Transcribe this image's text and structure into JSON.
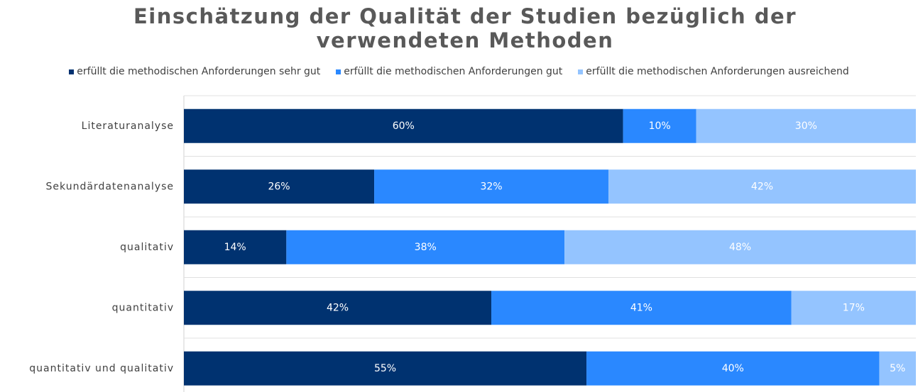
{
  "chart_data": {
    "type": "stacked-barh",
    "title": "Einschätzung der Qualität der Studien bezüglich der verwendeten Methoden",
    "categories": [
      "Literaturanalyse",
      "Sekundärdatenanalyse",
      "qualitativ",
      "quantitativ",
      "quantitativ und qualitativ"
    ],
    "series": [
      {
        "name": "erfüllt die methodischen Anforderungen sehr gut",
        "color": "#003270",
        "values": [
          60,
          26,
          14,
          42,
          55
        ],
        "value_labels": [
          "60%",
          "26%",
          "14%",
          "42%",
          "55%"
        ]
      },
      {
        "name": "erfüllt die methodischen Anforderungen gut",
        "color": "#2a88ff",
        "values": [
          10,
          32,
          38,
          41,
          40
        ],
        "value_labels": [
          "10%",
          "32%",
          "38%",
          "41%",
          "40%"
        ]
      },
      {
        "name": "erfüllt die methodischen Anforderungen ausreichend",
        "color": "#94c4ff",
        "values": [
          30,
          42,
          48,
          17,
          5
        ],
        "value_labels": [
          "30%",
          "42%",
          "48%",
          "17%",
          "5%"
        ]
      }
    ],
    "xlim": [
      0,
      100
    ]
  }
}
